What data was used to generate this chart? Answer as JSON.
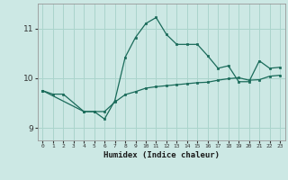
{
  "xlabel": "Humidex (Indice chaleur)",
  "ylabel": "",
  "background_color": "#cce8e4",
  "grid_color": "#aad4cc",
  "line_color": "#1a6b5a",
  "xlim": [
    -0.5,
    23.5
  ],
  "ylim": [
    8.75,
    11.5
  ],
  "xticks": [
    0,
    1,
    2,
    3,
    4,
    5,
    6,
    7,
    8,
    9,
    10,
    11,
    12,
    13,
    14,
    15,
    16,
    17,
    18,
    19,
    20,
    21,
    22,
    23
  ],
  "yticks": [
    9,
    10,
    11
  ],
  "series1_x": [
    0,
    1,
    2,
    4,
    5,
    6,
    7,
    8,
    9,
    10,
    11,
    12,
    13,
    14,
    15,
    16,
    17,
    18,
    19,
    20,
    21,
    22,
    23
  ],
  "series1_y": [
    9.75,
    9.68,
    9.68,
    9.33,
    9.33,
    9.33,
    9.52,
    9.67,
    9.73,
    9.8,
    9.83,
    9.85,
    9.87,
    9.89,
    9.91,
    9.92,
    9.96,
    9.99,
    10.01,
    9.96,
    9.97,
    10.04,
    10.06
  ],
  "series2_x": [
    0,
    4,
    5,
    6,
    7,
    8,
    9,
    10,
    11,
    12,
    13,
    14,
    15,
    16,
    17,
    18,
    19,
    20,
    21,
    22,
    23
  ],
  "series2_y": [
    9.75,
    9.33,
    9.33,
    9.18,
    9.55,
    10.42,
    10.82,
    11.1,
    11.22,
    10.88,
    10.68,
    10.68,
    10.68,
    10.45,
    10.2,
    10.25,
    9.93,
    9.93,
    10.35,
    10.2,
    10.22
  ]
}
